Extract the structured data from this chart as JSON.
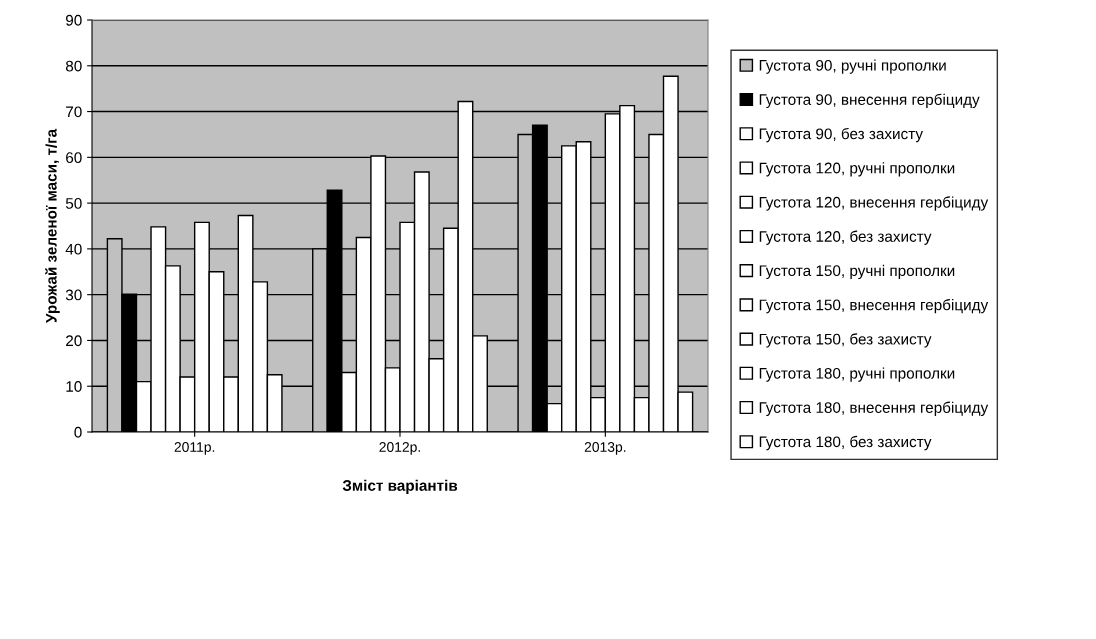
{
  "chart_data": {
    "type": "bar",
    "xlabel": "Зміст варіантів",
    "ylabel": "Урожай зеленої маси, т/га",
    "categories": [
      "2011р.",
      "2012р.",
      "2013р."
    ],
    "series": [
      {
        "name": "Густота 90, ручні прополки",
        "color": "#c0c0c0",
        "values": [
          42.2,
          40,
          65
        ]
      },
      {
        "name": "Густота 90, внесення гербіциду",
        "color": "#000000",
        "values": [
          30.1,
          52.8,
          67
        ]
      },
      {
        "name": "Густота 90, без захисту",
        "color": "#ffffff",
        "values": [
          11,
          13,
          6.2
        ]
      },
      {
        "name": "Густота 120, ручні прополки",
        "color": "#ffffff",
        "values": [
          44.8,
          42.5,
          62.5
        ]
      },
      {
        "name": "Густота 120, внесення гербіциду",
        "color": "#ffffff",
        "values": [
          36.3,
          60.3,
          63.4
        ]
      },
      {
        "name": "Густота 120, без захисту",
        "color": "#ffffff",
        "values": [
          12,
          14,
          7.5
        ]
      },
      {
        "name": "Густота 150, ручні прополки",
        "color": "#ffffff",
        "values": [
          45.8,
          45.8,
          69.5
        ]
      },
      {
        "name": "Густота 150, внесення гербіциду",
        "color": "#ffffff",
        "values": [
          35,
          56.8,
          71.3
        ]
      },
      {
        "name": "Густота 150, без захисту",
        "color": "#ffffff",
        "values": [
          12,
          16,
          7.5
        ]
      },
      {
        "name": "Густота 180, ручні прополки",
        "color": "#ffffff",
        "values": [
          47.3,
          44.5,
          65
        ]
      },
      {
        "name": "Густота 180, внесення гербіциду",
        "color": "#ffffff",
        "values": [
          32.8,
          72.2,
          77.7
        ]
      },
      {
        "name": "Густота 180, без захисту",
        "color": "#ffffff",
        "values": [
          12.5,
          21,
          8.7
        ]
      }
    ],
    "ylim": [
      0,
      90
    ],
    "yticks": [
      0,
      10,
      20,
      30,
      40,
      50,
      60,
      70,
      80,
      90
    ],
    "grid": "y",
    "legend": "right"
  }
}
